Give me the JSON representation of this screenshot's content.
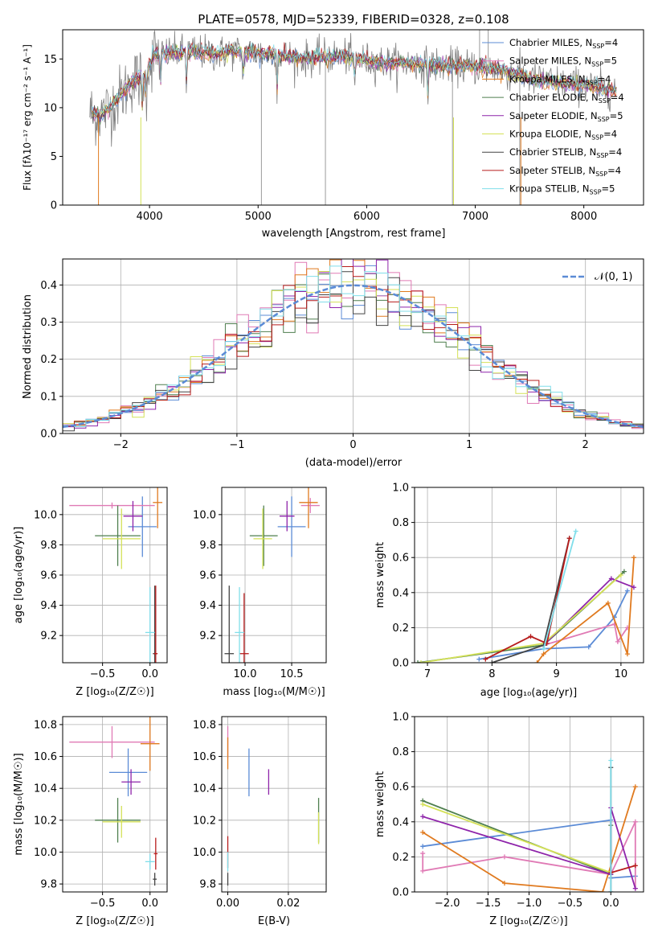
{
  "chart_data": [
    {
      "id": "spectrum",
      "type": "line",
      "title": "PLATE=0578, MJD=52339, FIBERID=0328, z=0.108",
      "xlabel": "wavelength [Angstrom, rest frame]",
      "ylabel": "Flux [fλ10⁻¹⁷ erg cm⁻² s⁻¹ A⁻¹]",
      "xlim": [
        3200,
        8550
      ],
      "ylim": [
        0,
        18
      ],
      "xticks": [
        "4000",
        "5000",
        "6000",
        "7000",
        "8000"
      ],
      "xtick_values": [
        4000,
        5000,
        6000,
        7000,
        8000
      ],
      "yticks": [
        "0",
        "5",
        "10",
        "15"
      ],
      "ytick_values": [
        0,
        5,
        10,
        15
      ],
      "legend_position": "right",
      "spectrum_shape": {
        "x": [
          3450,
          3550,
          3650,
          3750,
          3850,
          3950,
          4050,
          4200,
          4400,
          4600,
          4800,
          5000,
          5200,
          5400,
          5600,
          5800,
          6000,
          6200,
          6400,
          6600,
          6800,
          7000,
          7200,
          7400,
          7600,
          7800,
          8000,
          8200,
          8300
        ],
        "y": [
          9.5,
          9.3,
          10.2,
          11.5,
          12.8,
          13.2,
          15.5,
          15.6,
          15.8,
          15.5,
          15.8,
          15.6,
          15.4,
          15.0,
          15.2,
          15.3,
          14.8,
          14.6,
          14.5,
          14.4,
          14.3,
          14.2,
          14.0,
          13.3,
          12.8,
          12.5,
          12.3,
          11.9,
          11.8
        ]
      },
      "series": [
        {
          "name": "Chabrier MILES, N_SSP=4",
          "color": "#5b8bd6"
        },
        {
          "name": "Salpeter MILES, N_SSP=5",
          "color": "#e07ab5"
        },
        {
          "name": "Kroupa MILES, N_SSP=4",
          "color": "#e07a1f"
        },
        {
          "name": "Chabrier ELODIE, N_SSP=4",
          "color": "#4f7f4f"
        },
        {
          "name": "Salpeter ELODIE, N_SSP=5",
          "color": "#8e24aa"
        },
        {
          "name": "Kroupa ELODIE, N_SSP=4",
          "color": "#d4e157"
        },
        {
          "name": "Chabrier STELIB, N_SSP=4",
          "color": "#444444"
        },
        {
          "name": "Salpeter STELIB, N_SSP=4",
          "color": "#b71c1c"
        },
        {
          "name": "Kroupa STELIB, N_SSP=5",
          "color": "#80deea"
        }
      ],
      "data_color": "#808080"
    },
    {
      "id": "residuals",
      "type": "line",
      "xlabel": "(data-model)/error",
      "ylabel": "Normed distribution",
      "xlim": [
        -2.5,
        2.5
      ],
      "ylim": [
        0,
        0.47
      ],
      "xticks": [
        "−2",
        "−1",
        "0",
        "1",
        "2"
      ],
      "xtick_values": [
        -2,
        -1,
        0,
        1,
        2
      ],
      "yticks": [
        "0.0",
        "0.1",
        "0.2",
        "0.3",
        "0.4"
      ],
      "ytick_values": [
        0,
        0.1,
        0.2,
        0.3,
        0.4
      ],
      "grid": true,
      "legend_position": "top-right",
      "legend_label": "𝒩(0, 1)",
      "gaussian_color": "#5b8bd6",
      "bin_width": 0.1,
      "bin_start": -2.5,
      "hist_colors": [
        "#5b8bd6",
        "#e07ab5",
        "#e07a1f",
        "#4f7f4f",
        "#8e24aa",
        "#d4e157",
        "#444444",
        "#b71c1c",
        "#80deea"
      ]
    },
    {
      "id": "age-vs-Z",
      "type": "scatter",
      "xlabel": "Z [log₁₀(Z/Z☉)]",
      "ylabel": "age  [log₁₀(age/yr)]",
      "xlim": [
        -0.92,
        0.18
      ],
      "ylim": [
        9.02,
        10.18
      ],
      "xticks": [
        "−0.5",
        "0.0"
      ],
      "xtick_values": [
        -0.5,
        0.0
      ],
      "yticks": [
        "9.2",
        "9.4",
        "9.6",
        "9.8",
        "10.0"
      ],
      "ytick_values": [
        9.2,
        9.4,
        9.6,
        9.8,
        10.0
      ],
      "grid": true,
      "points": [
        {
          "x": -0.08,
          "y": 9.92,
          "xerr": 0.15,
          "yerr": 0.2,
          "color": "#5b8bd6"
        },
        {
          "x": -0.4,
          "y": 10.06,
          "xerr": 0.45,
          "yerr": 0.02,
          "color": "#e07ab5"
        },
        {
          "x": 0.08,
          "y": 10.08,
          "xerr": 0.05,
          "yerr": 0.17,
          "color": "#e07a1f"
        },
        {
          "x": -0.34,
          "y": 9.86,
          "xerr": 0.24,
          "yerr": 0.2,
          "color": "#4f7f4f"
        },
        {
          "x": -0.18,
          "y": 9.99,
          "xerr": 0.1,
          "yerr": 0.1,
          "color": "#8e24aa"
        },
        {
          "x": -0.3,
          "y": 9.84,
          "xerr": 0.2,
          "yerr": 0.2,
          "color": "#d4e157"
        },
        {
          "x": 0.05,
          "y": 9.08,
          "xerr": 0.02,
          "yerr": 0.45,
          "color": "#444444"
        },
        {
          "x": 0.06,
          "y": 9.08,
          "xerr": 0.02,
          "yerr": 0.45,
          "color": "#b71c1c"
        },
        {
          "x": 0.0,
          "y": 9.22,
          "xerr": 0.05,
          "yerr": 0.3,
          "color": "#80deea"
        }
      ]
    },
    {
      "id": "age-vs-mass",
      "type": "scatter",
      "xlabel": "mass [log₁₀(M/M☉)]",
      "ylabel": "",
      "xlim": [
        9.75,
        10.87
      ],
      "ylim": [
        9.02,
        10.18
      ],
      "xticks": [
        "10.0",
        "10.5"
      ],
      "xtick_values": [
        10.0,
        10.5
      ],
      "yticks": [
        "9.2",
        "9.4",
        "9.6",
        "9.8",
        "10.0"
      ],
      "ytick_values": [
        9.2,
        9.4,
        9.6,
        9.8,
        10.0
      ],
      "grid": true,
      "points": [
        {
          "x": 10.5,
          "y": 9.92,
          "xerr": 0.15,
          "yerr": 0.2,
          "color": "#5b8bd6"
        },
        {
          "x": 10.7,
          "y": 10.06,
          "xerr": 0.1,
          "yerr": 0.05,
          "color": "#e07ab5"
        },
        {
          "x": 10.68,
          "y": 10.08,
          "xerr": 0.1,
          "yerr": 0.17,
          "color": "#e07a1f"
        },
        {
          "x": 10.2,
          "y": 9.86,
          "xerr": 0.15,
          "yerr": 0.2,
          "color": "#4f7f4f"
        },
        {
          "x": 10.45,
          "y": 9.99,
          "xerr": 0.08,
          "yerr": 0.1,
          "color": "#8e24aa"
        },
        {
          "x": 10.19,
          "y": 9.84,
          "xerr": 0.1,
          "yerr": 0.2,
          "color": "#d4e157"
        },
        {
          "x": 9.83,
          "y": 9.08,
          "xerr": 0.05,
          "yerr": 0.45,
          "color": "#444444"
        },
        {
          "x": 9.99,
          "y": 9.08,
          "xerr": 0.05,
          "yerr": 0.4,
          "color": "#b71c1c"
        },
        {
          "x": 9.94,
          "y": 9.22,
          "xerr": 0.05,
          "yerr": 0.3,
          "color": "#80deea"
        }
      ]
    },
    {
      "id": "massweight-vs-age",
      "type": "line",
      "xlabel": "age  [log₁₀(age/yr)]",
      "ylabel": "mass weight",
      "xlim": [
        6.8,
        10.35
      ],
      "ylim": [
        0,
        1.0
      ],
      "xticks": [
        "7",
        "8",
        "9",
        "10"
      ],
      "xtick_values": [
        7,
        8,
        9,
        10
      ],
      "yticks": [
        "0.0",
        "0.2",
        "0.4",
        "0.6",
        "0.8",
        "1.0"
      ],
      "ytick_values": [
        0,
        0.2,
        0.4,
        0.6,
        0.8,
        1.0
      ],
      "grid": true,
      "series": [
        {
          "color": "#5b8bd6",
          "x": [
            7.8,
            8.8,
            9.5,
            9.9,
            10.1
          ],
          "y": [
            0.02,
            0.08,
            0.09,
            0.26,
            0.41
          ]
        },
        {
          "color": "#e07ab5",
          "x": [
            8.8,
            9.9,
            9.95,
            10.1
          ],
          "y": [
            0.1,
            0.22,
            0.12,
            0.2
          ]
        },
        {
          "color": "#e07a1f",
          "x": [
            8.7,
            8.8,
            9.8,
            10.1,
            10.2
          ],
          "y": [
            0.0,
            0.05,
            0.34,
            0.05,
            0.6
          ]
        },
        {
          "color": "#4f7f4f",
          "x": [
            6.85,
            8.8,
            10.05
          ],
          "y": [
            0.0,
            0.1,
            0.52
          ]
        },
        {
          "color": "#8e24aa",
          "x": [
            8.8,
            9.85,
            10.2
          ],
          "y": [
            0.1,
            0.48,
            0.43
          ]
        },
        {
          "color": "#d4e157",
          "x": [
            6.9,
            8.8,
            10.0
          ],
          "y": [
            0.0,
            0.11,
            0.5
          ]
        },
        {
          "color": "#444444",
          "x": [
            8.0,
            8.8,
            9.2
          ],
          "y": [
            0.0,
            0.1,
            0.71
          ]
        },
        {
          "color": "#b71c1c",
          "x": [
            7.9,
            8.6,
            8.85,
            9.2
          ],
          "y": [
            0.02,
            0.15,
            0.11,
            0.71
          ]
        },
        {
          "color": "#80deea",
          "x": [
            8.8,
            9.3
          ],
          "y": [
            0.08,
            0.75
          ]
        }
      ]
    },
    {
      "id": "mass-vs-Z",
      "type": "scatter",
      "xlabel": "Z [log₁₀(Z/Z☉)]",
      "ylabel": "mass [log₁₀(M/M☉)]",
      "xlim": [
        -0.92,
        0.18
      ],
      "ylim": [
        9.75,
        10.85
      ],
      "xticks": [
        "−0.5",
        "0.0"
      ],
      "xtick_values": [
        -0.5,
        0.0
      ],
      "yticks": [
        "9.8",
        "10.0",
        "10.2",
        "10.4",
        "10.6",
        "10.8"
      ],
      "ytick_values": [
        9.8,
        10.0,
        10.2,
        10.4,
        10.6,
        10.8
      ],
      "grid": true,
      "points": [
        {
          "x": -0.23,
          "y": 10.5,
          "xerr": 0.2,
          "yerr": 0.15,
          "color": "#5b8bd6"
        },
        {
          "x": -0.4,
          "y": 10.69,
          "xerr": 0.45,
          "yerr": 0.1,
          "color": "#e07ab5"
        },
        {
          "x": 0.0,
          "y": 10.68,
          "xerr": 0.1,
          "yerr": 0.17,
          "color": "#e07a1f"
        },
        {
          "x": -0.34,
          "y": 10.2,
          "xerr": 0.24,
          "yerr": 0.14,
          "color": "#4f7f4f"
        },
        {
          "x": -0.2,
          "y": 10.44,
          "xerr": 0.1,
          "yerr": 0.08,
          "color": "#8e24aa"
        },
        {
          "x": -0.3,
          "y": 10.19,
          "xerr": 0.2,
          "yerr": 0.1,
          "color": "#d4e157"
        },
        {
          "x": 0.05,
          "y": 9.83,
          "xerr": 0.02,
          "yerr": 0.04,
          "color": "#444444"
        },
        {
          "x": 0.06,
          "y": 9.99,
          "xerr": 0.02,
          "yerr": 0.1,
          "color": "#b71c1c"
        },
        {
          "x": 0.0,
          "y": 9.94,
          "xerr": 0.05,
          "yerr": 0.05,
          "color": "#80deea"
        }
      ]
    },
    {
      "id": "mass-vs-EBV",
      "type": "scatter",
      "xlabel": "E(B-V)",
      "ylabel": "",
      "xlim": [
        -0.002,
        0.0325
      ],
      "ylim": [
        9.75,
        10.85
      ],
      "xticks": [
        "0.00",
        "0.02"
      ],
      "xtick_values": [
        0.0,
        0.02
      ],
      "yticks": [
        "9.8",
        "10.0",
        "10.2",
        "10.4",
        "10.6",
        "10.8"
      ],
      "ytick_values": [
        9.8,
        10.0,
        10.2,
        10.4,
        10.6,
        10.8
      ],
      "grid": true,
      "points": [
        {
          "x": 0.007,
          "y": 10.5,
          "xerr": 0,
          "yerr": 0.15,
          "color": "#5b8bd6"
        },
        {
          "x": 0.0,
          "y": 10.69,
          "xerr": 0,
          "yerr": 0.1,
          "color": "#e07ab5"
        },
        {
          "x": 0.0,
          "y": 10.62,
          "xerr": 0,
          "yerr": 0.1,
          "color": "#e07a1f"
        },
        {
          "x": 0.03,
          "y": 10.2,
          "xerr": 0,
          "yerr": 0.14,
          "color": "#4f7f4f"
        },
        {
          "x": 0.0135,
          "y": 10.44,
          "xerr": 0,
          "yerr": 0.08,
          "color": "#8e24aa"
        },
        {
          "x": 0.03,
          "y": 10.15,
          "xerr": 0,
          "yerr": 0.1,
          "color": "#d4e157"
        },
        {
          "x": 0.0,
          "y": 9.83,
          "xerr": 0,
          "yerr": 0.04,
          "color": "#444444"
        },
        {
          "x": 0.0,
          "y": 10.0,
          "xerr": 0,
          "yerr": 0.1,
          "color": "#b71c1c"
        },
        {
          "x": 0.0,
          "y": 9.94,
          "xerr": 0,
          "yerr": 0.06,
          "color": "#80deea"
        }
      ]
    },
    {
      "id": "massweight-vs-Z",
      "type": "line",
      "xlabel": "Z [log₁₀(Z/Z☉)]",
      "ylabel": "mass weight",
      "xlim": [
        -2.4,
        0.4
      ],
      "ylim": [
        0,
        1.0
      ],
      "xticks": [
        "−2.0",
        "−1.5",
        "−1.0",
        "−0.5",
        "0.0"
      ],
      "xtick_values": [
        -2.0,
        -1.5,
        -1.0,
        -0.5,
        0.0
      ],
      "yticks": [
        "0.0",
        "0.2",
        "0.4",
        "0.6",
        "0.8",
        "1.0"
      ],
      "ytick_values": [
        0,
        0.2,
        0.4,
        0.6,
        0.8,
        1.0
      ],
      "grid": true,
      "series": [
        {
          "color": "#5b8bd6",
          "x": [
            -2.3,
            0.0,
            0.0,
            0.3
          ],
          "y": [
            0.26,
            0.41,
            0.08,
            0.09
          ]
        },
        {
          "color": "#e07ab5",
          "x": [
            -2.3,
            -2.3,
            -1.3,
            0.0,
            0.3,
            0.3
          ],
          "y": [
            0.22,
            0.12,
            0.2,
            0.1,
            0.4,
            0.02
          ]
        },
        {
          "color": "#e07a1f",
          "x": [
            -2.3,
            -1.3,
            -0.1,
            0.3
          ],
          "y": [
            0.34,
            0.05,
            0.0,
            0.6
          ]
        },
        {
          "color": "#4f7f4f",
          "x": [
            -2.3,
            0.0,
            0.0
          ],
          "y": [
            0.52,
            0.1,
            0.38
          ]
        },
        {
          "color": "#8e24aa",
          "x": [
            -2.3,
            0.0,
            0.0,
            0.3
          ],
          "y": [
            0.43,
            0.1,
            0.48,
            0.02
          ]
        },
        {
          "color": "#d4e157",
          "x": [
            -2.3,
            0.0
          ],
          "y": [
            0.5,
            0.11
          ]
        },
        {
          "color": "#444444",
          "x": [
            0.0,
            0.0
          ],
          "y": [
            0.0,
            0.71
          ]
        },
        {
          "color": "#b71c1c",
          "x": [
            0.0,
            0.3
          ],
          "y": [
            0.11,
            0.15
          ]
        },
        {
          "color": "#80deea",
          "x": [
            0.0,
            0.0
          ],
          "y": [
            0.0,
            0.75
          ]
        }
      ]
    }
  ]
}
